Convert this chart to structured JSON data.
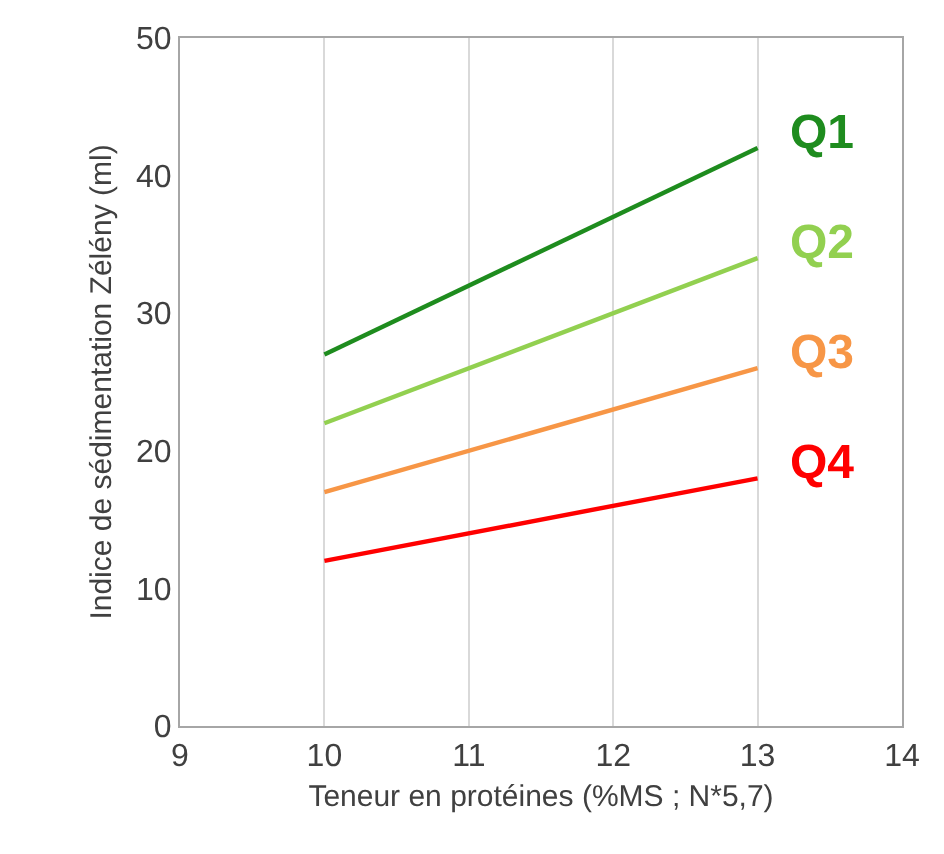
{
  "chart_data": {
    "type": "line",
    "xlabel": "Teneur en protéines (%MS ; N*5,7)",
    "ylabel": "Indice de sédimentation Zélény (ml)",
    "x": [
      10,
      13
    ],
    "series": [
      {
        "name": "Q1",
        "color": "#1e8c1e",
        "values": [
          27,
          42
        ]
      },
      {
        "name": "Q2",
        "color": "#92d050",
        "values": [
          22,
          34
        ]
      },
      {
        "name": "Q3",
        "color": "#f79646",
        "values": [
          17,
          26
        ]
      },
      {
        "name": "Q4",
        "color": "#ff0000",
        "values": [
          12,
          18
        ]
      }
    ],
    "xlim": [
      9,
      14
    ],
    "xticks": [
      9,
      10,
      11,
      12,
      13,
      14
    ],
    "ylim": [
      0,
      50
    ],
    "yticks": [
      0,
      10,
      20,
      30,
      40,
      50
    ],
    "grid": "x",
    "legend": false,
    "marker": "none",
    "line_style": "solid"
  }
}
